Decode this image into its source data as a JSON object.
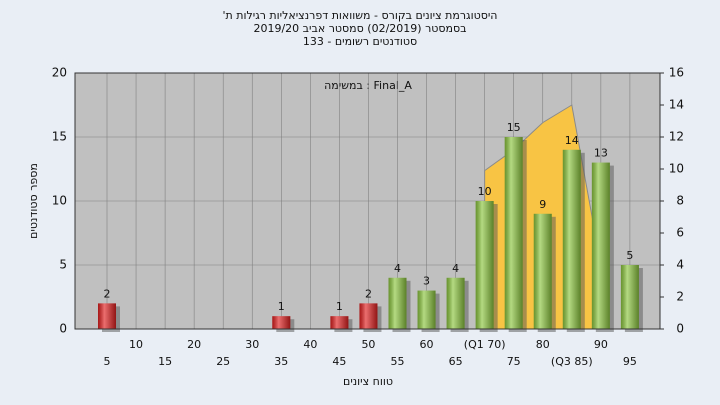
{
  "chart_data": {
    "type": "bar",
    "title_lines": [
      "היסטוגרמת ציונים בקורס - משוואות דפרנציאליות רגילות ת'",
      "בסמסטר  (02/2019)  סמסטר אביב 2019/20",
      "סטודנטים רשומים - 133"
    ],
    "annotation": "במשימה : Final_A",
    "x_label": "טווח ציונים",
    "y_label": "מספר סטודנטים",
    "categories": [
      "5",
      "10",
      "15",
      "20",
      "25",
      "30",
      "35",
      "40",
      "45",
      "50",
      "55",
      "60",
      "65",
      "(Q1 70)",
      "75",
      "80",
      "(Q3 85)",
      "90",
      "95"
    ],
    "values": [
      2,
      0,
      0,
      0,
      0,
      0,
      1,
      0,
      1,
      2,
      4,
      3,
      4,
      10,
      15,
      9,
      14,
      13,
      5
    ],
    "colors": [
      "#e02020",
      "#e02020",
      "#e02020",
      "#e02020",
      "#e02020",
      "#e02020",
      "#e02020",
      "#e02020",
      "#e02020",
      "#e02020",
      "#8cc63f",
      "#8cc63f",
      "#8cc63f",
      "#8cc63f",
      "#8cc63f",
      "#8cc63f",
      "#8cc63f",
      "#8cc63f",
      "#8cc63f"
    ],
    "area": {
      "axis": "y2",
      "color": "#f8c444",
      "values": [
        null,
        null,
        null,
        null,
        null,
        null,
        null,
        null,
        null,
        null,
        null,
        null,
        null,
        9.9,
        11.2,
        12.9,
        14,
        4,
        null
      ]
    },
    "ylim": [
      0,
      20
    ],
    "yticks": [
      0,
      5,
      10,
      15,
      20
    ],
    "y2lim": [
      0,
      16
    ],
    "y2ticks": [
      0,
      2,
      4,
      6,
      8,
      10,
      12,
      14,
      16
    ],
    "grid": true
  }
}
